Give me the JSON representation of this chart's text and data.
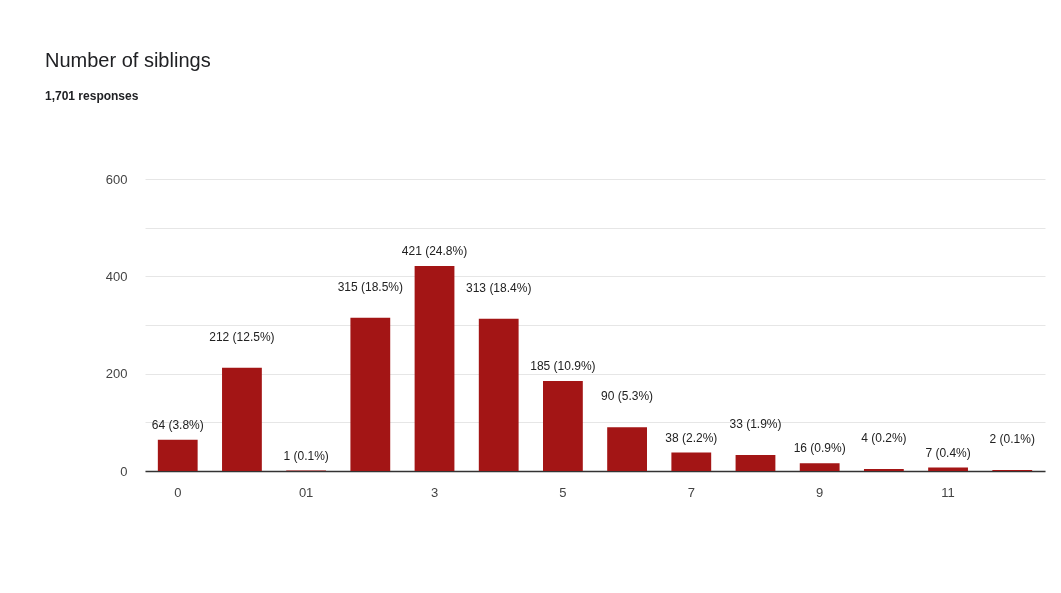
{
  "chart_data": {
    "type": "bar",
    "title": "Number of siblings",
    "subtitle": "1,701 responses",
    "categories": [
      "0",
      null,
      "01",
      null,
      "3",
      null,
      "5",
      null,
      "7",
      null,
      "9",
      null,
      "11",
      null
    ],
    "values": [
      64,
      212,
      1,
      315,
      421,
      313,
      185,
      90,
      38,
      33,
      16,
      4,
      7,
      2
    ],
    "value_labels": [
      "64 (3.8%)",
      "212 (12.5%)",
      "1 (0.1%)",
      "315 (18.5%)",
      "421 (24.8%)",
      "313 (18.4%)",
      "185 (10.9%)",
      "90 (5.3%)",
      "38 (2.2%)",
      "33 (1.9%)",
      "16 (0.9%)",
      "4 (0.2%)",
      "7 (0.4%)",
      "2 (0.1%)"
    ],
    "color": "#a31515",
    "ylim": [
      0,
      600
    ],
    "yticks": [
      0,
      {
        "value": 100,
        "label": null
      },
      200,
      {
        "value": 300,
        "label": null
      },
      400,
      {
        "value": 500,
        "label": null
      },
      600
    ],
    "grid": "y"
  }
}
